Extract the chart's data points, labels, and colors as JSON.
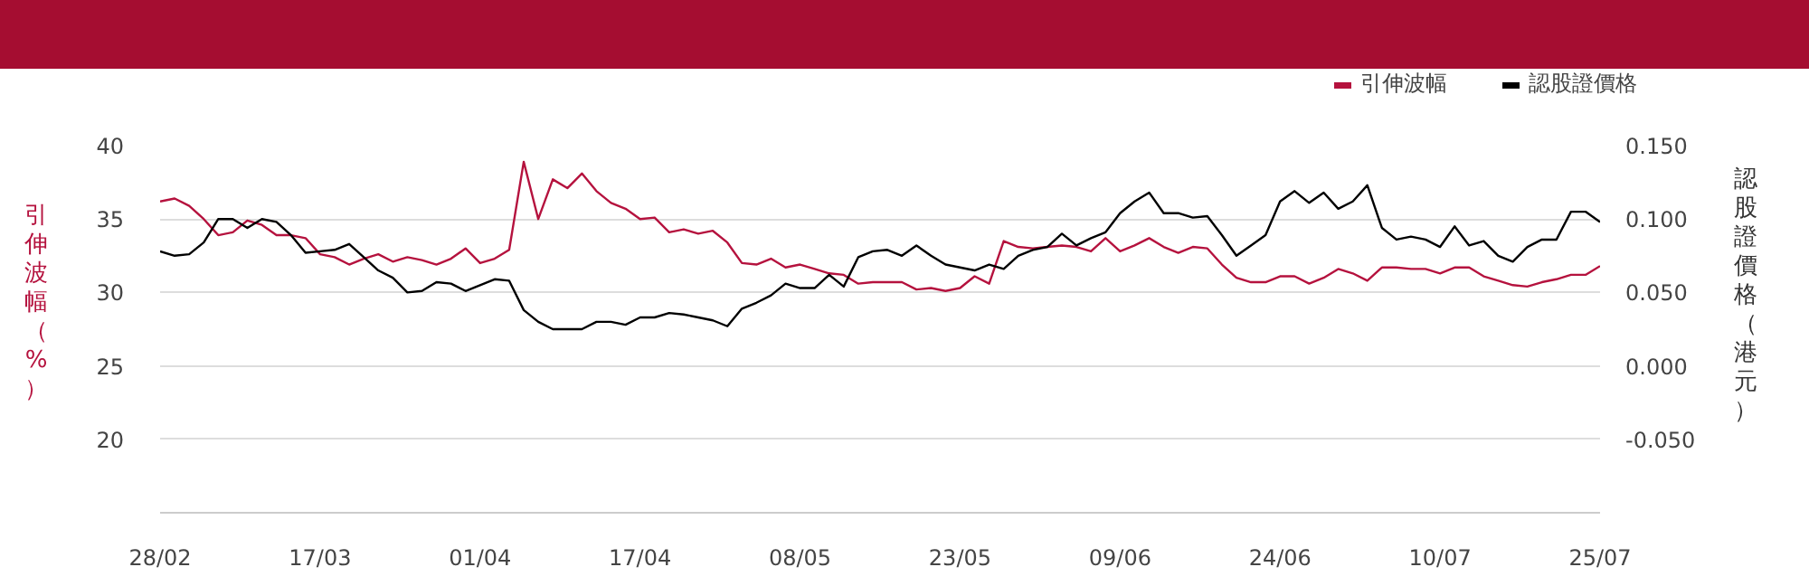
{
  "chart_data": {
    "type": "line",
    "categories": [
      "28/02",
      null,
      null,
      null,
      null,
      null,
      null,
      null,
      null,
      null,
      null,
      "17/03",
      null,
      null,
      null,
      null,
      null,
      null,
      null,
      null,
      null,
      null,
      "01/04",
      null,
      null,
      null,
      null,
      null,
      null,
      null,
      null,
      null,
      null,
      "17/04",
      null,
      null,
      null,
      null,
      null,
      null,
      null,
      null,
      null,
      null,
      "08/05",
      null,
      null,
      null,
      null,
      null,
      null,
      null,
      null,
      null,
      null,
      "23/05",
      null,
      null,
      null,
      null,
      null,
      null,
      null,
      null,
      null,
      null,
      "09/06",
      null,
      null,
      null,
      null,
      null,
      null,
      null,
      null,
      null,
      null,
      "24/06",
      null,
      null,
      null,
      null,
      null,
      null,
      null,
      null,
      null,
      null,
      "10/07",
      null,
      null,
      null,
      null,
      null,
      null,
      null,
      null,
      null,
      null,
      "25/07"
    ],
    "series": [
      {
        "name": "引伸波幅",
        "color": "#b5123e",
        "values": [
          36.2,
          36.4,
          35.9,
          35.0,
          33.9,
          34.1,
          34.9,
          34.6,
          33.9,
          33.9,
          33.7,
          32.6,
          32.4,
          31.9,
          32.3,
          32.6,
          32.1,
          32.4,
          32.2,
          31.9,
          32.3,
          33.0,
          32.0,
          32.3,
          32.9,
          38.9,
          35.0,
          37.7,
          37.1,
          38.1,
          36.9,
          36.1,
          35.7,
          35.0,
          35.1,
          34.1,
          34.3,
          34.0,
          34.2,
          33.4,
          32.0,
          31.9,
          32.3,
          31.7,
          31.9,
          31.6,
          31.3,
          31.2,
          30.6,
          30.7,
          30.7,
          30.7,
          30.2,
          30.3,
          30.1,
          30.3,
          31.1,
          30.6,
          33.5,
          33.1,
          33.0,
          33.1,
          33.2,
          33.1,
          32.8,
          33.7,
          32.8,
          33.2,
          33.7,
          33.1,
          32.7,
          33.1,
          33.0,
          31.9,
          31.0,
          30.7,
          30.7,
          31.1,
          31.1,
          30.6,
          31.0,
          31.6,
          31.3,
          30.8,
          31.7,
          31.7,
          31.6,
          31.6,
          31.3,
          31.7,
          31.7,
          31.1,
          30.8,
          30.5,
          30.4,
          30.7,
          30.9,
          31.2,
          31.2,
          31.8
        ]
      },
      {
        "name": "認股證價格",
        "color": "#000000",
        "axis": "y2",
        "values": [
          0.078,
          0.075,
          0.076,
          0.084,
          0.1,
          0.1,
          0.094,
          0.1,
          0.098,
          0.089,
          0.077,
          0.078,
          0.079,
          0.083,
          0.074,
          0.065,
          0.06,
          0.05,
          0.051,
          0.057,
          0.056,
          0.051,
          0.055,
          0.059,
          0.058,
          0.038,
          0.03,
          0.025,
          0.025,
          0.025,
          0.03,
          0.03,
          0.028,
          0.033,
          0.033,
          0.036,
          0.035,
          0.033,
          0.031,
          0.027,
          0.039,
          0.043,
          0.048,
          0.056,
          0.053,
          0.053,
          0.062,
          0.054,
          0.074,
          0.078,
          0.079,
          0.075,
          0.082,
          0.075,
          0.069,
          0.067,
          0.065,
          0.069,
          0.066,
          0.075,
          0.079,
          0.081,
          0.09,
          0.082,
          0.087,
          0.091,
          0.104,
          0.112,
          0.118,
          0.104,
          0.104,
          0.101,
          0.102,
          0.089,
          0.075,
          0.082,
          0.089,
          0.112,
          0.119,
          0.111,
          0.118,
          0.107,
          0.112,
          0.123,
          0.094,
          0.086,
          0.088,
          0.086,
          0.081,
          0.095,
          0.082,
          0.085,
          0.075,
          0.071,
          0.081,
          0.086,
          0.086,
          0.105,
          0.105,
          0.098
        ]
      }
    ],
    "ylabel": "引伸波幅（%）",
    "y2label": "認股證價格（港元）",
    "ylim": [
      15,
      40
    ],
    "yticks": [
      20,
      25,
      30,
      35,
      40
    ],
    "y2lim": [
      -0.1,
      0.15
    ],
    "y2ticks": [
      {
        "value": -0.05,
        "label": "-0.050"
      },
      {
        "value": 0,
        "label": "0.000"
      },
      {
        "value": 0.05,
        "label": "0.050"
      },
      {
        "value": 0.1,
        "label": "0.100"
      },
      {
        "value": 0.15,
        "label": "0.150"
      }
    ],
    "grid": "y",
    "legend": "top right",
    "marker": "none",
    "line_style": "solid"
  }
}
